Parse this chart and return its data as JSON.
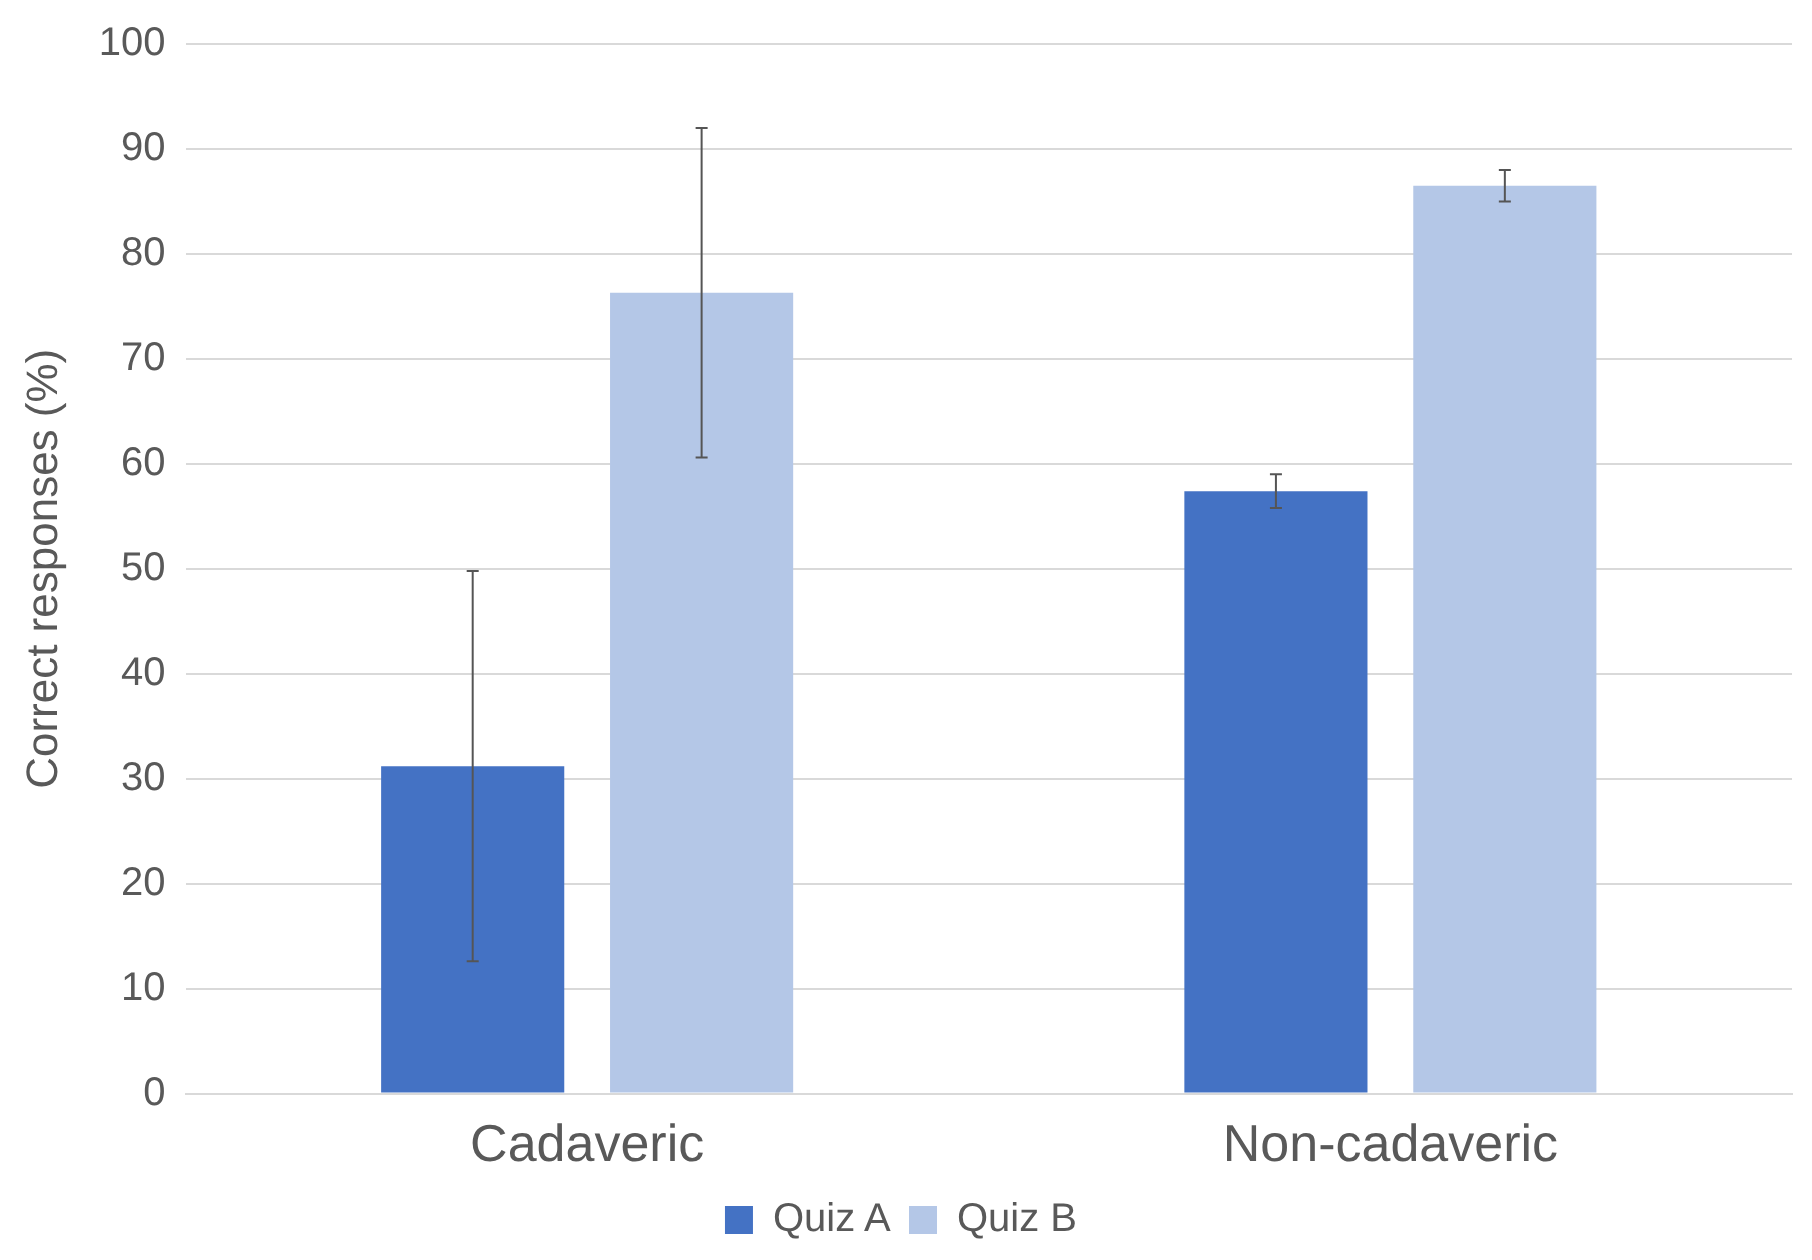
{
  "chart_data": {
    "type": "bar",
    "ylabel": "Correct responses (%)",
    "categories": [
      "Cadaveric",
      "Non-cadaveric"
    ],
    "series": [
      {
        "name": "Quiz A",
        "color": "#4472c4",
        "values": [
          31.2,
          57.4
        ],
        "errors": [
          18.6,
          1.6
        ]
      },
      {
        "name": "Quiz B",
        "color": "#b4c7e7",
        "values": [
          76.3,
          86.5
        ],
        "errors": [
          15.7,
          1.5
        ]
      }
    ],
    "ylim": [
      0,
      100
    ],
    "yticks": [
      0,
      10,
      20,
      30,
      40,
      50,
      60,
      70,
      80,
      90,
      100
    ],
    "grid": "y",
    "legend": "bottom"
  }
}
